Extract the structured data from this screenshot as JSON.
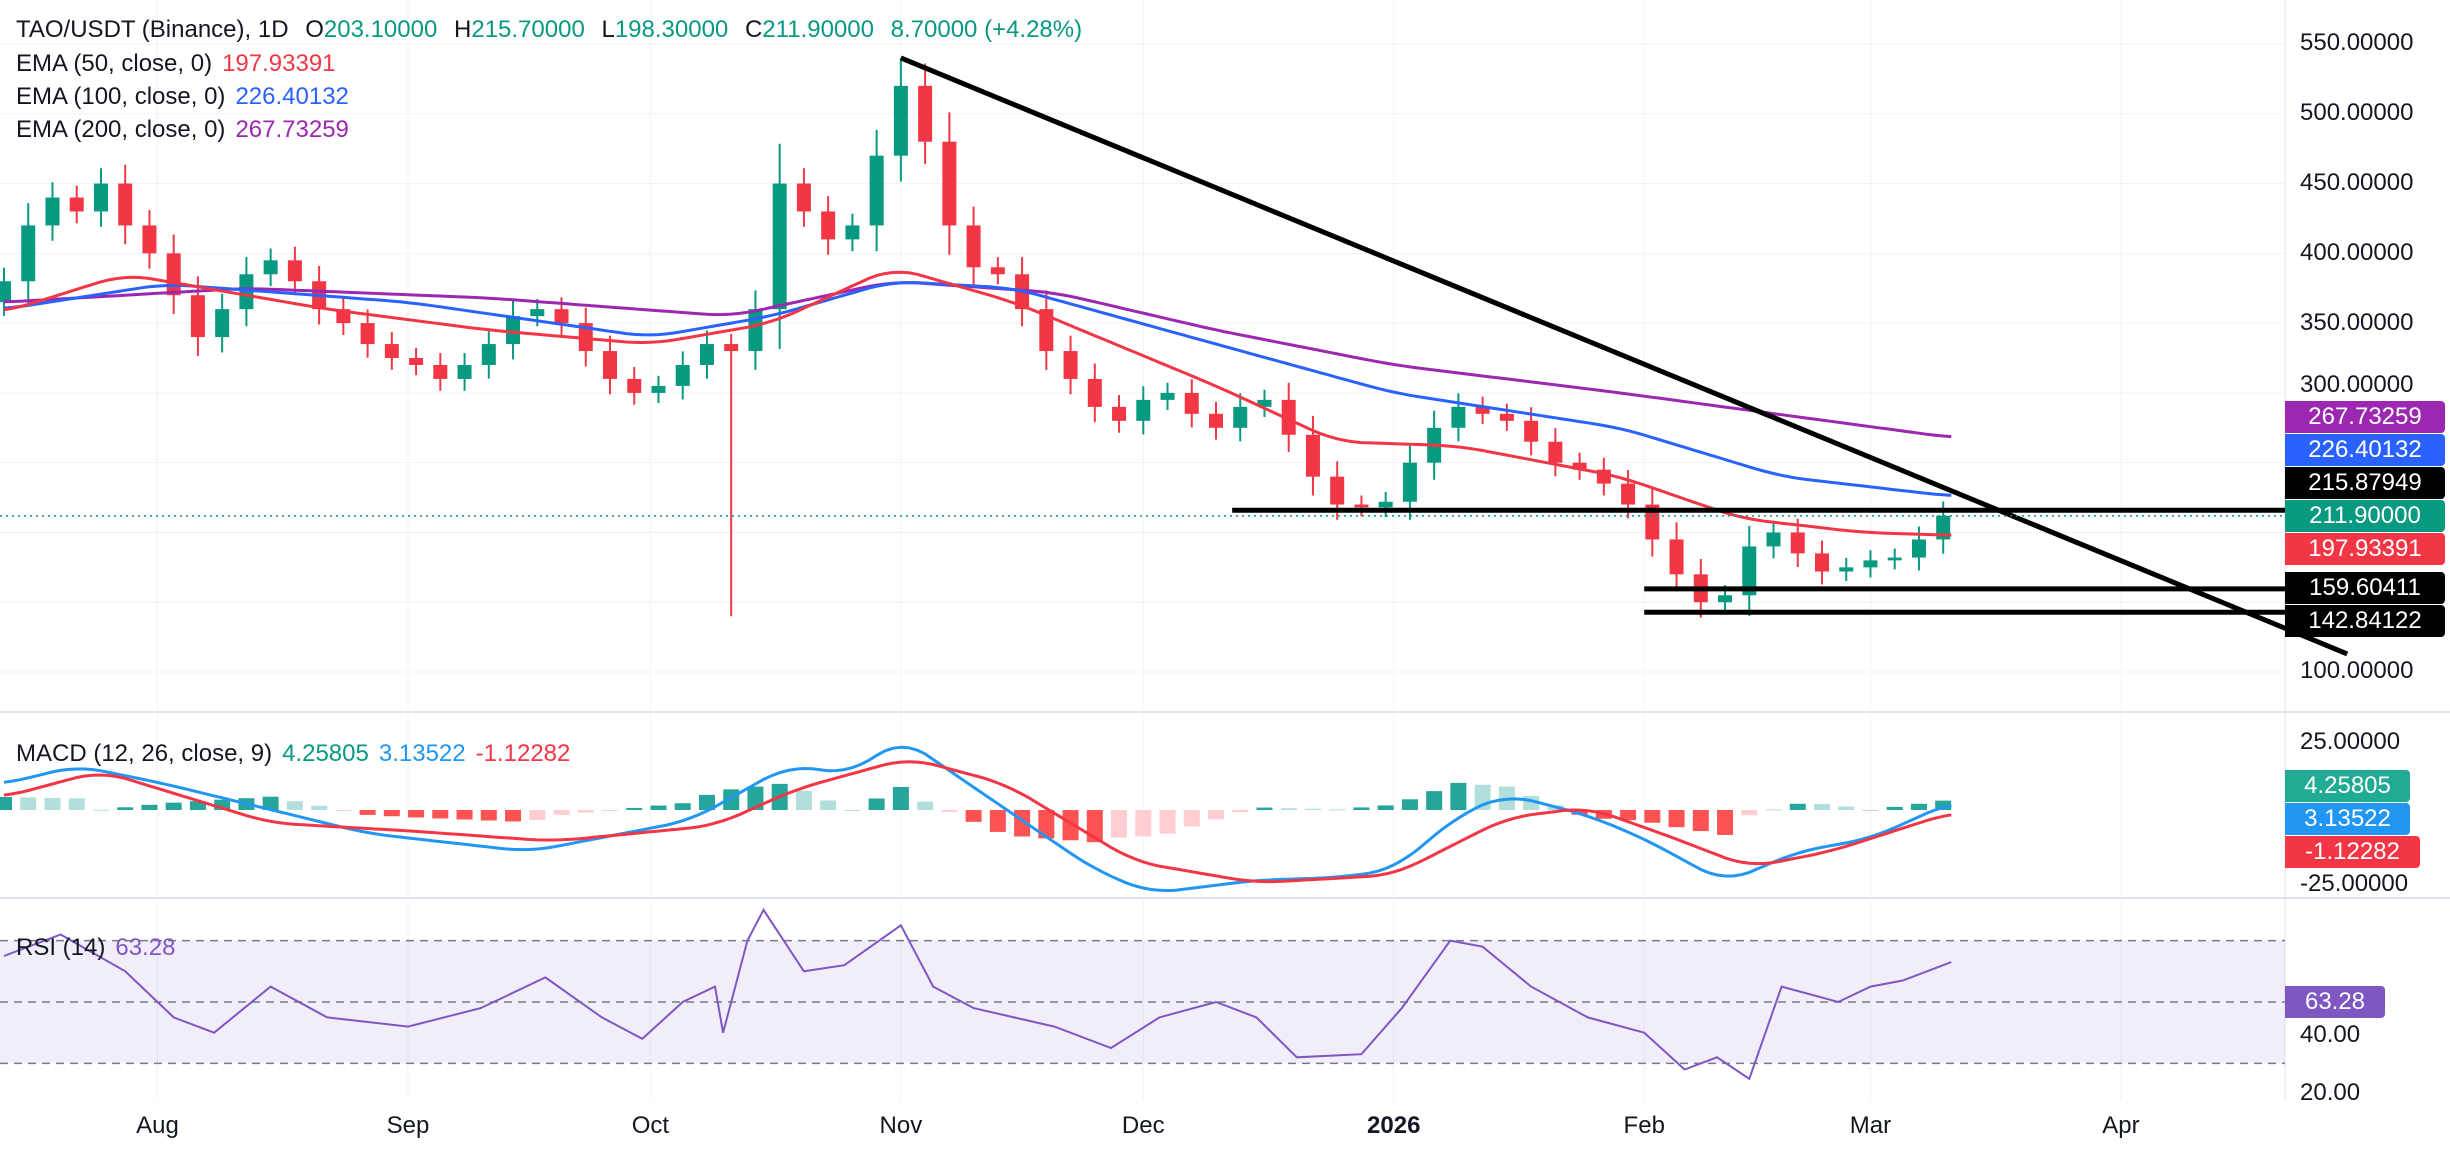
{
  "header": {
    "symbol": "TAO/USDT (Binance), 1D",
    "o_label": "O",
    "open": "203.10000",
    "h_label": "H",
    "high": "215.70000",
    "l_label": "L",
    "low": "198.30000",
    "c_label": "C",
    "close": "211.90000",
    "change": "8.70000 (+4.28%)"
  },
  "indicators": {
    "ema50": {
      "label": "EMA (50, close, 0)",
      "value": "197.93391",
      "color": "#f23645"
    },
    "ema100": {
      "label": "EMA (100, close, 0)",
      "value": "226.40132",
      "color": "#2962ff"
    },
    "ema200": {
      "label": "EMA (200, close, 0)",
      "value": "267.73259",
      "color": "#9c27b0"
    },
    "macd": {
      "label": "MACD (12, 26, close, 9)",
      "hist": "4.25805",
      "macd": "3.13522",
      "signal": "-1.12282"
    },
    "rsi": {
      "label": "RSI (14)",
      "value": "63.28"
    }
  },
  "price_axis": [
    "550.00000",
    "500.00000",
    "450.00000",
    "400.00000",
    "350.00000",
    "300.00000",
    "100.00000"
  ],
  "macd_axis": [
    "25.00000",
    "-25.00000"
  ],
  "rsi_axis": [
    "40.00",
    "20.00"
  ],
  "badges": {
    "ema200": "267.73259",
    "ema100": "226.40132",
    "resistance": "215.87949",
    "last": "211.90000",
    "ema50": "197.93391",
    "support1": "159.60411",
    "support2": "142.84122"
  },
  "time_axis": [
    {
      "label": "Aug",
      "day": 19
    },
    {
      "label": "Sep",
      "day": 50
    },
    {
      "label": "Oct",
      "day": 80
    },
    {
      "label": "Nov",
      "day": 111
    },
    {
      "label": "Dec",
      "day": 141
    },
    {
      "label": "2026",
      "day": 172
    },
    {
      "label": "Feb",
      "day": 203
    },
    {
      "label": "Mar",
      "day": 231
    },
    {
      "label": "Apr",
      "day": 262
    }
  ],
  "chart_data": {
    "type": "candlestick",
    "title": "TAO/USDT (Binance), 1D",
    "candle_step_days": 3,
    "closes": [
      380,
      420,
      440,
      430,
      450,
      420,
      400,
      370,
      340,
      360,
      385,
      395,
      380,
      360,
      350,
      335,
      325,
      320,
      310,
      320,
      335,
      355,
      360,
      350,
      330,
      310,
      300,
      305,
      320,
      335,
      330,
      360,
      450,
      430,
      410,
      420,
      470,
      520,
      480,
      420,
      390,
      385,
      360,
      330,
      310,
      290,
      280,
      295,
      300,
      285,
      275,
      290,
      295,
      270,
      240,
      220,
      218,
      222,
      250,
      275,
      290,
      285,
      280,
      265,
      250,
      245,
      235,
      220,
      195,
      170,
      150,
      155,
      190,
      200,
      185,
      172,
      175,
      180,
      182,
      195,
      212
    ],
    "special_wicks": [
      {
        "index": 30,
        "low": 140
      },
      {
        "index": 37,
        "high": 540
      }
    ],
    "ylim": [
      80,
      560
    ],
    "ema50": [
      [
        0,
        358
      ],
      [
        15,
        385
      ],
      [
        40,
        360
      ],
      [
        60,
        345
      ],
      [
        80,
        335
      ],
      [
        95,
        350
      ],
      [
        110,
        390
      ],
      [
        125,
        365
      ],
      [
        150,
        305
      ],
      [
        165,
        265
      ],
      [
        180,
        262
      ],
      [
        200,
        240
      ],
      [
        215,
        210
      ],
      [
        230,
        200
      ],
      [
        241,
        198
      ]
    ],
    "ema100": [
      [
        0,
        360
      ],
      [
        20,
        378
      ],
      [
        50,
        365
      ],
      [
        80,
        340
      ],
      [
        95,
        355
      ],
      [
        110,
        380
      ],
      [
        125,
        375
      ],
      [
        150,
        335
      ],
      [
        172,
        300
      ],
      [
        200,
        275
      ],
      [
        220,
        240
      ],
      [
        241,
        226
      ]
    ],
    "ema200": [
      [
        0,
        365
      ],
      [
        30,
        375
      ],
      [
        60,
        368
      ],
      [
        90,
        355
      ],
      [
        110,
        380
      ],
      [
        130,
        372
      ],
      [
        150,
        345
      ],
      [
        172,
        320
      ],
      [
        200,
        300
      ],
      [
        241,
        268
      ]
    ],
    "trendline": [
      [
        111,
        540
      ],
      [
        290,
        113
      ]
    ],
    "hlines": [
      {
        "value": 215.88,
        "from_day": 152
      },
      {
        "value": 159.6,
        "from_day": 203
      },
      {
        "value": 142.84,
        "from_day": 203
      }
    ],
    "macd_line": [
      [
        0,
        10
      ],
      [
        9,
        17
      ],
      [
        20,
        10
      ],
      [
        45,
        -9
      ],
      [
        65,
        -16
      ],
      [
        85,
        -4
      ],
      [
        97,
        17
      ],
      [
        105,
        14
      ],
      [
        111,
        28
      ],
      [
        118,
        13
      ],
      [
        135,
        -23
      ],
      [
        142,
        -32
      ],
      [
        155,
        -27
      ],
      [
        165,
        -26
      ],
      [
        172,
        -23
      ],
      [
        180,
        -2
      ],
      [
        186,
        6
      ],
      [
        196,
        -2
      ],
      [
        203,
        -11
      ],
      [
        213,
        -28
      ],
      [
        222,
        -16
      ],
      [
        231,
        -11
      ],
      [
        241,
        3
      ]
    ],
    "signal_line": [
      [
        0,
        5
      ],
      [
        12,
        15
      ],
      [
        33,
        -5
      ],
      [
        50,
        -8
      ],
      [
        68,
        -12
      ],
      [
        88,
        -6
      ],
      [
        98,
        8
      ],
      [
        112,
        20
      ],
      [
        124,
        10
      ],
      [
        140,
        -20
      ],
      [
        155,
        -28
      ],
      [
        172,
        -25
      ],
      [
        186,
        -3
      ],
      [
        196,
        1
      ],
      [
        206,
        -10
      ],
      [
        216,
        -22
      ],
      [
        226,
        -16
      ],
      [
        241,
        -1
      ]
    ],
    "rsi": [
      [
        0,
        65
      ],
      [
        7,
        72
      ],
      [
        15,
        60
      ],
      [
        21,
        45
      ],
      [
        26,
        40
      ],
      [
        33,
        55
      ],
      [
        40,
        45
      ],
      [
        50,
        42
      ],
      [
        59,
        48
      ],
      [
        67,
        58
      ],
      [
        74,
        45
      ],
      [
        79,
        38
      ],
      [
        84,
        50
      ],
      [
        88,
        55
      ],
      [
        89,
        40
      ],
      [
        92,
        70
      ],
      [
        94,
        80
      ],
      [
        99,
        60
      ],
      [
        104,
        62
      ],
      [
        111,
        75
      ],
      [
        115,
        55
      ],
      [
        120,
        48
      ],
      [
        130,
        42
      ],
      [
        137,
        35
      ],
      [
        143,
        45
      ],
      [
        150,
        50
      ],
      [
        155,
        45
      ],
      [
        160,
        32
      ],
      [
        168,
        33
      ],
      [
        173,
        48
      ],
      [
        179,
        70
      ],
      [
        183,
        68
      ],
      [
        189,
        55
      ],
      [
        196,
        45
      ],
      [
        203,
        40
      ],
      [
        208,
        28
      ],
      [
        212,
        32
      ],
      [
        216,
        25
      ],
      [
        220,
        55
      ],
      [
        227,
        50
      ],
      [
        231,
        55
      ],
      [
        235,
        57
      ],
      [
        241,
        63
      ]
    ],
    "rsi_levels": [
      70,
      50,
      30
    ]
  }
}
